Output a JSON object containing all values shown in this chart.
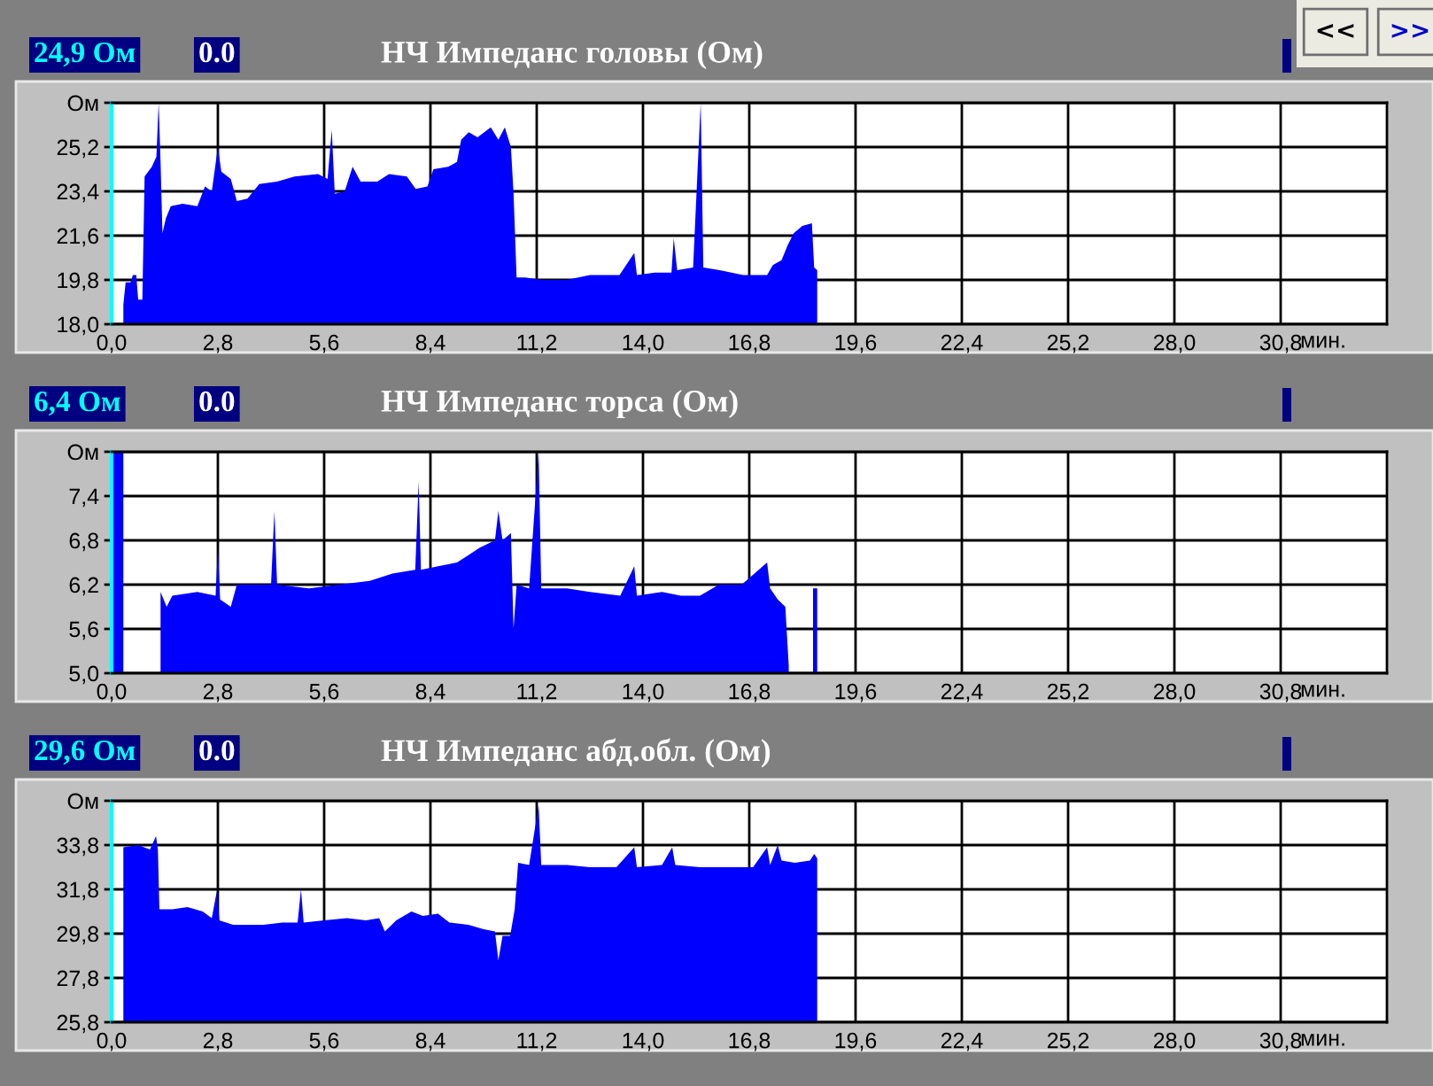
{
  "chart_data": [
    {
      "type": "area",
      "title": "НЧ Импеданс головы (Ом)",
      "xlabel": "мин.",
      "annotations": [
        "24,9 Ом",
        "0.0",
        "<<",
        ">>"
      ],
      "x": [
        0.31,
        0.37,
        0.5,
        0.56,
        0.65,
        0.7,
        0.81,
        0.87,
        1.06,
        1.18,
        1.24,
        1.29,
        1.34,
        1.43,
        1.56,
        1.87,
        2.26,
        2.46,
        2.64,
        2.8,
        2.89,
        3.14,
        3.3,
        3.58,
        3.89,
        4.36,
        4.82,
        5.44,
        5.69,
        5.8,
        5.88,
        6.14,
        6.35,
        6.56,
        7.0,
        7.31,
        7.78,
        8.01,
        8.32,
        8.48,
        8.87,
        9.1,
        9.21,
        9.41,
        9.64,
        9.99,
        10.19,
        10.36,
        10.52,
        10.59,
        10.67,
        10.89,
        11.36,
        11.98,
        12.6,
        13.38,
        13.77,
        13.84,
        14.31,
        14.75,
        14.81,
        14.9,
        15.32,
        15.52,
        15.59,
        16.02,
        16.64,
        17.27,
        17.42,
        17.65,
        17.81,
        17.97,
        18.2,
        18.45,
        18.51,
        18.59
      ],
      "series": [
        {
          "color": "#0000ff",
          "values": [
            18.8,
            19.7,
            19.7,
            20.0,
            20.0,
            19.0,
            19.0,
            24.0,
            24.4,
            24.8,
            27.0,
            24.6,
            21.7,
            22.3,
            22.8,
            22.9,
            22.8,
            23.6,
            23.4,
            25.2,
            24.2,
            23.9,
            23.0,
            23.1,
            23.7,
            23.8,
            24.0,
            24.1,
            23.9,
            25.9,
            23.3,
            23.4,
            24.4,
            23.8,
            23.8,
            24.1,
            24.0,
            23.5,
            23.6,
            24.3,
            24.4,
            24.6,
            25.5,
            25.8,
            25.6,
            26.0,
            25.5,
            26.0,
            25.2,
            23.3,
            19.9,
            19.9,
            19.8,
            19.8,
            20.0,
            20.0,
            20.9,
            20.0,
            20.1,
            20.1,
            21.5,
            20.2,
            20.3,
            27.0,
            20.3,
            20.2,
            20.0,
            20.0,
            20.4,
            20.6,
            21.2,
            21.7,
            22.0,
            22.1,
            20.3,
            20.2
          ]
        }
      ],
      "xlim": [
        0,
        33.6
      ],
      "xticks": [
        {
          "value": 0,
          "label": "0,0"
        },
        {
          "value": 2.8,
          "label": "2,8"
        },
        {
          "value": 5.6,
          "label": "5,6"
        },
        {
          "value": 8.4,
          "label": "8,4"
        },
        {
          "value": 11.2,
          "label": "11,2"
        },
        {
          "value": 14.0,
          "label": "14,0"
        },
        {
          "value": 16.8,
          "label": "16,8"
        },
        {
          "value": 19.6,
          "label": "19,6"
        },
        {
          "value": 22.4,
          "label": "22,4"
        },
        {
          "value": 25.2,
          "label": "25,2"
        },
        {
          "value": 28.0,
          "label": "28,0"
        },
        {
          "value": 30.8,
          "label": "30,8"
        }
      ],
      "ylim": [
        18,
        27
      ],
      "yticks": [
        {
          "value": 18,
          "label": "18,0"
        },
        {
          "value": 19.8,
          "label": "19,8"
        },
        {
          "value": 21.6,
          "label": "21,6"
        },
        {
          "value": 23.4,
          "label": "23,4"
        },
        {
          "value": 25.2,
          "label": "25,2"
        },
        {
          "value": 27,
          "label": "Ом"
        }
      ],
      "grid": true
    },
    {
      "type": "area",
      "title": "НЧ Импеданс торса (Ом)",
      "xlabel": "мин.",
      "annotations": [
        "6,4 Ом",
        "0.0"
      ],
      "x": [
        0.0,
        0.31,
        0.8,
        1.29,
        1.45,
        1.6,
        2.26,
        2.74,
        2.8,
        2.86,
        3.14,
        3.3,
        4.2,
        4.29,
        4.36,
        5.2,
        6.0,
        6.8,
        7.4,
        8.0,
        8.09,
        8.15,
        8.6,
        9.1,
        9.4,
        9.7,
        10.1,
        10.19,
        10.3,
        10.52,
        10.59,
        10.67,
        11.0,
        11.25,
        11.32,
        12.0,
        12.6,
        13.4,
        13.77,
        13.84,
        14.5,
        15.0,
        15.5,
        16.0,
        16.6,
        17.27,
        17.35,
        17.55,
        17.75,
        17.84,
        17.9,
        18.48,
        18.59
      ],
      "series": [
        {
          "color": "#0000ff",
          "values": [
            8.0,
            8.0,
            null,
            6.1,
            5.9,
            6.05,
            6.1,
            6.05,
            6.7,
            6.0,
            5.9,
            6.2,
            6.2,
            7.2,
            6.2,
            6.15,
            6.2,
            6.25,
            6.35,
            6.4,
            7.6,
            6.4,
            6.45,
            6.5,
            6.6,
            6.7,
            6.8,
            7.2,
            6.8,
            6.9,
            5.6,
            6.2,
            6.15,
            8.0,
            6.15,
            6.15,
            6.1,
            6.05,
            6.45,
            6.05,
            6.1,
            6.05,
            6.05,
            6.2,
            6.2,
            6.5,
            6.15,
            6.0,
            5.9,
            5.1,
            null,
            6.15,
            6.15
          ]
        }
      ],
      "xlim": [
        0,
        33.6
      ],
      "xticks": [
        {
          "value": 0,
          "label": "0,0"
        },
        {
          "value": 2.8,
          "label": "2,8"
        },
        {
          "value": 5.6,
          "label": "5,6"
        },
        {
          "value": 8.4,
          "label": "8,4"
        },
        {
          "value": 11.2,
          "label": "11,2"
        },
        {
          "value": 14.0,
          "label": "14,0"
        },
        {
          "value": 16.8,
          "label": "16,8"
        },
        {
          "value": 19.6,
          "label": "19,6"
        },
        {
          "value": 22.4,
          "label": "22,4"
        },
        {
          "value": 25.2,
          "label": "25,2"
        },
        {
          "value": 28.0,
          "label": "28,0"
        },
        {
          "value": 30.8,
          "label": "30,8"
        }
      ],
      "ylim": [
        5,
        8
      ],
      "yticks": [
        {
          "value": 5,
          "label": "5,0"
        },
        {
          "value": 5.6,
          "label": "5,6"
        },
        {
          "value": 6.2,
          "label": "6,2"
        },
        {
          "value": 6.8,
          "label": "6,8"
        },
        {
          "value": 7.4,
          "label": "7,4"
        },
        {
          "value": 8,
          "label": "Ом"
        }
      ],
      "grid": true
    },
    {
      "type": "area",
      "title": "НЧ Импеданс абд.обл. (Ом)",
      "xlabel": "мин.",
      "annotations": [
        "29,6 Ом",
        "0.0"
      ],
      "x": [
        0.31,
        0.7,
        1.01,
        1.17,
        1.22,
        1.26,
        1.6,
        2.0,
        2.4,
        2.64,
        2.77,
        2.84,
        3.2,
        4.0,
        4.5,
        4.9,
        4.99,
        5.06,
        5.6,
        6.2,
        6.7,
        7.05,
        7.2,
        7.5,
        7.9,
        8.2,
        8.6,
        8.9,
        9.4,
        9.8,
        10.1,
        10.19,
        10.3,
        10.5,
        10.62,
        10.71,
        11.0,
        11.25,
        11.32,
        12.0,
        12.6,
        13.3,
        13.77,
        13.84,
        14.5,
        14.77,
        14.85,
        15.5,
        16.2,
        16.9,
        17.27,
        17.35,
        17.55,
        17.65,
        18.0,
        18.4,
        18.51,
        18.59
      ],
      "series": [
        {
          "color": "#0000ff",
          "values": [
            33.7,
            33.8,
            33.6,
            34.2,
            33.6,
            30.9,
            30.9,
            31.0,
            30.8,
            30.5,
            31.7,
            30.4,
            30.2,
            30.2,
            30.3,
            30.3,
            31.8,
            30.3,
            30.4,
            30.5,
            30.4,
            30.5,
            29.9,
            30.4,
            30.8,
            30.6,
            30.7,
            30.3,
            30.2,
            30.0,
            29.9,
            28.6,
            29.7,
            29.7,
            30.9,
            33.0,
            32.9,
            35.6,
            32.9,
            32.9,
            32.8,
            32.8,
            33.7,
            32.8,
            32.9,
            33.7,
            32.9,
            32.8,
            32.8,
            32.8,
            33.7,
            32.9,
            33.8,
            33.1,
            33.0,
            33.1,
            33.4,
            33.2
          ]
        }
      ],
      "xlim": [
        0,
        33.6
      ],
      "xticks": [
        {
          "value": 0,
          "label": "0,0"
        },
        {
          "value": 2.8,
          "label": "2,8"
        },
        {
          "value": 5.6,
          "label": "5,6"
        },
        {
          "value": 8.4,
          "label": "8,4"
        },
        {
          "value": 11.2,
          "label": "11,2"
        },
        {
          "value": 14.0,
          "label": "14,0"
        },
        {
          "value": 16.8,
          "label": "16,8"
        },
        {
          "value": 19.6,
          "label": "19,6"
        },
        {
          "value": 22.4,
          "label": "22,4"
        },
        {
          "value": 25.2,
          "label": "25,2"
        },
        {
          "value": 28.0,
          "label": "28,0"
        },
        {
          "value": 30.8,
          "label": "30,8"
        }
      ],
      "ylim": [
        25.8,
        35.8
      ],
      "yticks": [
        {
          "value": 25.8,
          "label": "25,8"
        },
        {
          "value": 27.8,
          "label": "27,8"
        },
        {
          "value": 29.8,
          "label": "29,8"
        },
        {
          "value": 31.8,
          "label": "31,8"
        },
        {
          "value": 33.8,
          "label": "33,8"
        },
        {
          "value": 35.8,
          "label": "Ом"
        }
      ],
      "grid": true
    }
  ]
}
